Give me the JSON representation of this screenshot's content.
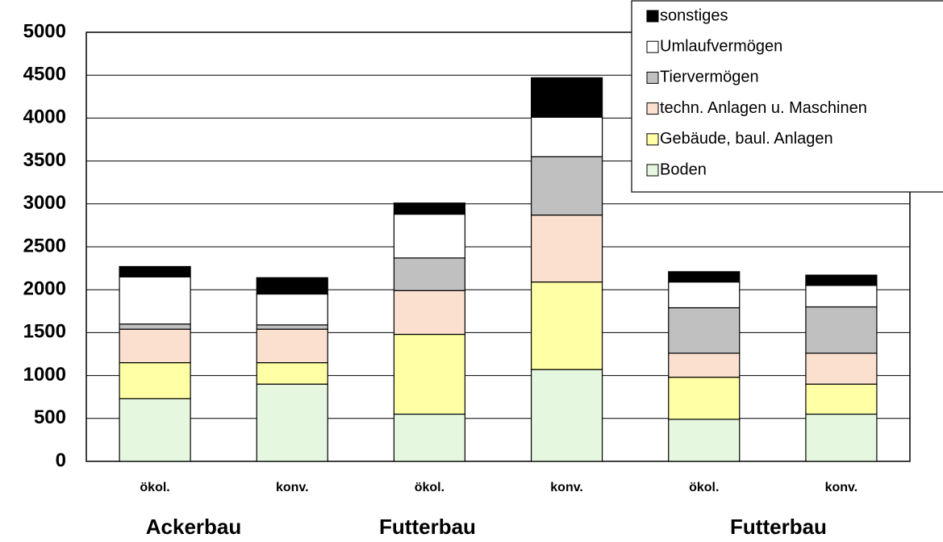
{
  "chart_data": {
    "type": "stacked_bar",
    "categories": [
      "ökol.",
      "konv.",
      "ökol.",
      "konv.",
      "ökol.",
      "konv."
    ],
    "groups": [
      "Ackerbau",
      "Futterbau",
      "Futterbau"
    ],
    "series": [
      {
        "name": "Boden",
        "color": "#e6f7df",
        "values": [
          730,
          900,
          550,
          1070,
          490,
          550
        ]
      },
      {
        "name": "Gebäude, baul. Anlagen",
        "color": "#ffffa6",
        "values": [
          420,
          250,
          930,
          1020,
          490,
          350
        ]
      },
      {
        "name": "techn. Anlagen u. Maschinen",
        "color": "#fbe0d0",
        "values": [
          390,
          390,
          510,
          780,
          280,
          360
        ]
      },
      {
        "name": "Tiervermögen",
        "color": "#c0c0c0",
        "values": [
          60,
          50,
          380,
          680,
          530,
          540
        ]
      },
      {
        "name": "Umlaufvermögen",
        "color": "#ffffff",
        "values": [
          550,
          360,
          510,
          460,
          300,
          250
        ]
      },
      {
        "name": "sonstiges",
        "color": "#000000",
        "values": [
          120,
          190,
          130,
          460,
          120,
          120
        ]
      }
    ],
    "ylim": [
      0,
      5000
    ],
    "yticks": [
      0,
      500,
      1000,
      1500,
      2000,
      2500,
      3000,
      3500,
      4000,
      4500,
      5000
    ],
    "grid": true,
    "legend": "upper right"
  }
}
